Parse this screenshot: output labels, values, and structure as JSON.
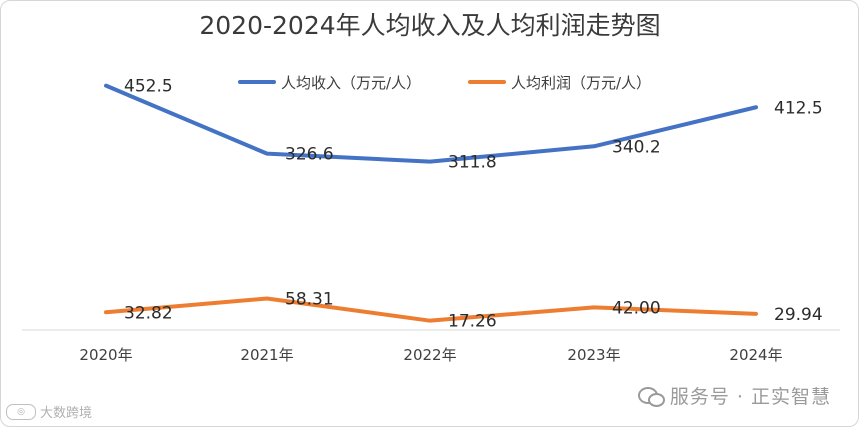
{
  "chart_data": {
    "type": "line",
    "title": "2020-2024年人均收入及人均利润走势图",
    "categories": [
      "2020年",
      "2021年",
      "2022年",
      "2023年",
      "2024年"
    ],
    "series": [
      {
        "name": "人均收入（万元/人）",
        "color": "#4472c4",
        "values": [
          452.5,
          326.6,
          311.8,
          340.2,
          412.5
        ],
        "labels": [
          "452.5",
          "326.6",
          "311.8",
          "340.2",
          "412.5"
        ]
      },
      {
        "name": "人均利润（万元/人）",
        "color": "#ed7d31",
        "values": [
          32.82,
          58.31,
          17.26,
          42.0,
          29.94
        ],
        "labels": [
          "32.82",
          "58.31",
          "17.26",
          "42.00",
          "29.94"
        ]
      }
    ],
    "ylim": [
      0,
      500
    ],
    "grid": false,
    "legend": "top-center"
  },
  "watermark": {
    "right_text": "服务号 · 正实智慧",
    "left_text": "大数跨境",
    "wechat_icon": "wechat-icon",
    "logo_icon": "logo-icon"
  }
}
